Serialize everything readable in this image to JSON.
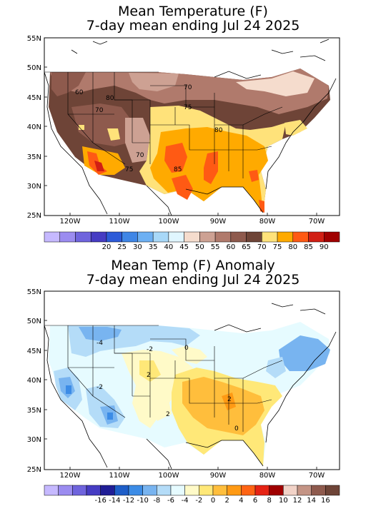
{
  "top": {
    "title_line1": "Mean Temperature (F)",
    "title_line2": "7-day mean ending Jul 24 2025",
    "lat_labels": [
      "55N",
      "50N",
      "45N",
      "40N",
      "35N",
      "30N",
      "25N"
    ],
    "lon_labels": [
      "120W",
      "110W",
      "100W",
      "90W",
      "80W",
      "70W"
    ],
    "contour_labels": [
      "80",
      "60",
      "70",
      "75",
      "70",
      "80",
      "70",
      "75",
      "85"
    ],
    "colorbar": {
      "colors": [
        "#c6b9ff",
        "#9b8cf0",
        "#6f64dd",
        "#463cc3",
        "#2d5bd8",
        "#3f86e6",
        "#6db0f3",
        "#a8d8f8",
        "#e0f6ff",
        "#f5dccd",
        "#cda193",
        "#b07a6c",
        "#8e5a4d",
        "#6e4437",
        "#ffe27a",
        "#ffaa00",
        "#ff5a14",
        "#d11f14",
        "#a00000"
      ],
      "labels": [
        "20",
        "25",
        "30",
        "35",
        "40",
        "45",
        "50",
        "55",
        "60",
        "65",
        "70",
        "75",
        "80",
        "85",
        "90"
      ]
    }
  },
  "bottom": {
    "title_line1": "Mean Temp (F) Anomaly",
    "title_line2": "7-day mean ending Jul 24 2025",
    "lat_labels": [
      "55N",
      "50N",
      "45N",
      "40N",
      "35N",
      "30N",
      "25N"
    ],
    "lon_labels": [
      "120W",
      "110W",
      "100W",
      "90W",
      "80W",
      "70W"
    ],
    "contour_labels": [
      "-4",
      "-2",
      "0",
      "2",
      "-2",
      "2",
      "2",
      "0"
    ],
    "colorbar": {
      "colors": [
        "#c6b9ff",
        "#9b8cf0",
        "#6f64dd",
        "#463cc3",
        "#201e96",
        "#1e5ec8",
        "#3c8ce6",
        "#78b4f0",
        "#b4dcf8",
        "#e6fbff",
        "#fffac8",
        "#ffe878",
        "#ffbe3c",
        "#ff9a14",
        "#ff6414",
        "#e62314",
        "#a00000",
        "#f2d3c8",
        "#c49485",
        "#8e5a4d",
        "#6e4437"
      ],
      "labels": [
        "-16",
        "-14",
        "-12",
        "-10",
        "-8",
        "-6",
        "-4",
        "-2",
        "0",
        "2",
        "4",
        "6",
        "8",
        "10",
        "12",
        "14",
        "16"
      ]
    }
  }
}
